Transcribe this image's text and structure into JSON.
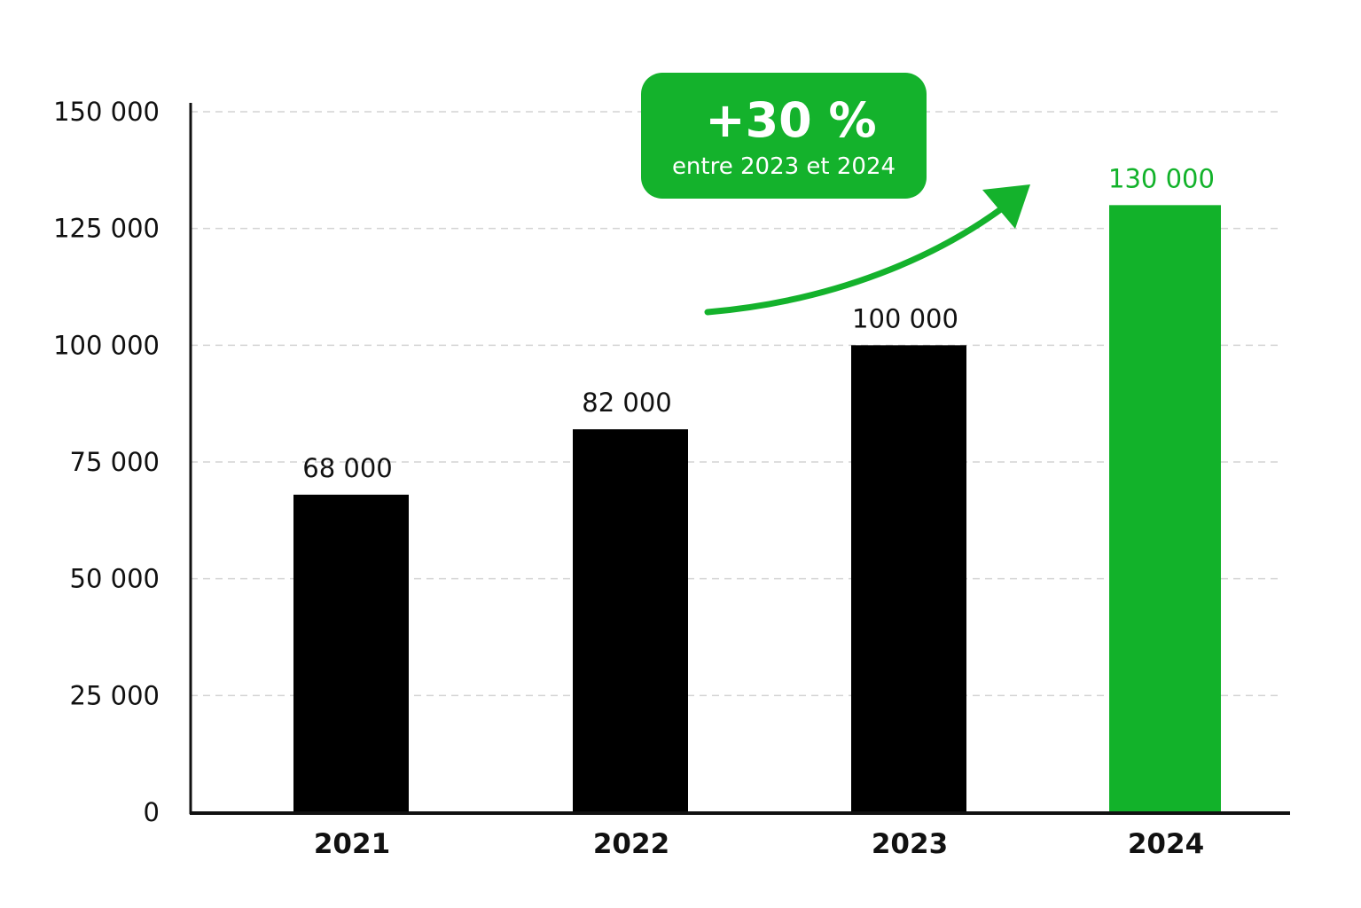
{
  "colors": {
    "bar_default": "#000000",
    "bar_highlight": "#12B22A",
    "highlight_text": "#12B22A",
    "axis": "#111111",
    "grid": "#d4d4d4",
    "callout_bg": "#14B22C",
    "callout_text": "#ffffff",
    "arrow": "#14B22C"
  },
  "callout": {
    "main": "+30 %",
    "sub": "entre 2023 et 2024",
    "icon": "curved-arrow-up-right-icon"
  },
  "chart_data": {
    "type": "bar",
    "title": "",
    "xlabel": "",
    "ylabel": "",
    "categories": [
      "2021",
      "2022",
      "2023",
      "2024"
    ],
    "values": [
      68000,
      82000,
      100000,
      130000
    ],
    "value_labels": [
      "68 000",
      "82 000",
      "100 000",
      "130 000"
    ],
    "highlight_index": 3,
    "ylim": [
      0,
      150000
    ],
    "yticks": [
      0,
      25000,
      50000,
      75000,
      100000,
      125000,
      150000
    ],
    "ytick_labels": [
      "0",
      "25 000",
      "50 000",
      "75 000",
      "100 000",
      "125 000",
      "150 000"
    ],
    "grid": true,
    "legend": "none"
  }
}
